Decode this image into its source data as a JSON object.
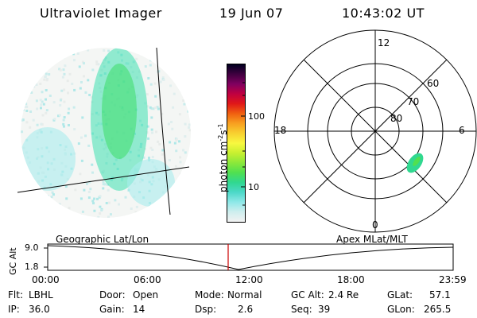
{
  "header": {
    "title": "Ultraviolet Imager",
    "date": "19 Jun 07",
    "time": "10:43:02 UT"
  },
  "colorbar": {
    "unit_label": "photon cm",
    "unit_exp1": "-2",
    "unit_mid": "s",
    "unit_exp2": "-1",
    "tick_100": "100",
    "tick_10": "10",
    "colors": [
      "#f2f2f2",
      "#cfeeee",
      "#8ee8e8",
      "#4cd8c8",
      "#30d890",
      "#50e050",
      "#8ce83a",
      "#c8f030",
      "#f8f840",
      "#f8d030",
      "#f8a020",
      "#f06010",
      "#e01818",
      "#c00040",
      "#800060",
      "#400040",
      "#000020"
    ]
  },
  "polar": {
    "hour_12": "12",
    "hour_18": "18",
    "hour_6": "6",
    "hour_0": "0",
    "lat_60": "60",
    "lat_70": "70",
    "lat_80": "80"
  },
  "orbit": {
    "left_label": "Geographic Lat/Lon",
    "right_label": "Apex MLat/MLT",
    "axis_label": "GC Alt",
    "y_top": "9.0",
    "y_bottom": "1.8",
    "x_ticks": [
      "00:00",
      "06:00",
      "12:00",
      "18:00",
      "23:59"
    ],
    "marker_color": "#cc0000"
  },
  "info": {
    "flt_label": "Flt:",
    "flt_value": "LBHL",
    "ip_label": "IP:",
    "ip_value": "36.0",
    "door_label": "Door:",
    "door_value": "Open",
    "gain_label": "Gain:",
    "gain_value": "14",
    "mode_label": "Mode:",
    "mode_value": "Normal",
    "dsp_label": "Dsp:",
    "dsp_value": "2.6",
    "gcalt_label": "GC Alt:",
    "gcalt_value": "2.4 Re",
    "seq_label": "Seq:",
    "seq_value": "39",
    "glat_label": "GLat:",
    "glat_value": "57.1",
    "glon_label": "GLon:",
    "glon_value": "265.5"
  }
}
